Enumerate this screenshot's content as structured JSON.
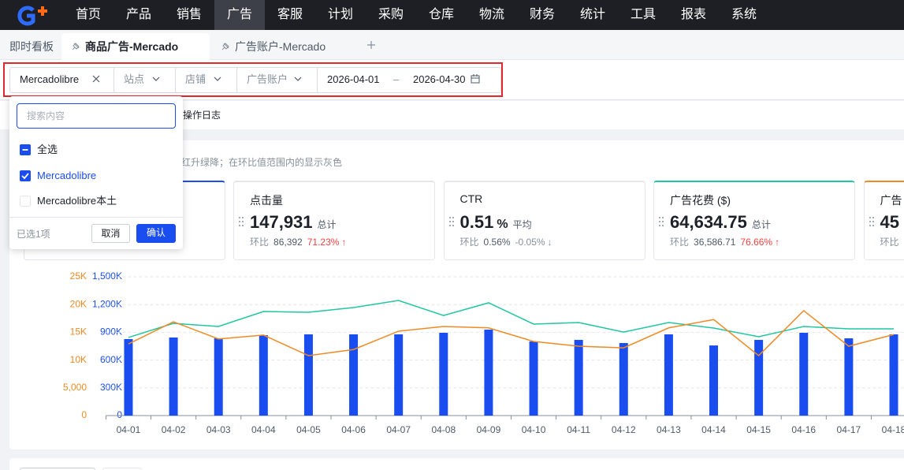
{
  "nav": {
    "items": [
      "首页",
      "产品",
      "销售",
      "广告",
      "客服",
      "计划",
      "采购",
      "仓库",
      "物流",
      "财务",
      "统计",
      "工具",
      "报表",
      "系统"
    ],
    "active_index": 3
  },
  "tabs": {
    "items": [
      "即时看板",
      "商品广告-Mercado",
      "广告账户-Mercado"
    ],
    "active_index": 1
  },
  "filters": {
    "platform": "Mercadolibre",
    "site": "站点",
    "shop": "店铺",
    "ad_account": "广告账户",
    "date_start": "2026-04-01",
    "date_separator": "–",
    "date_end": "2026-04-30"
  },
  "dropdown": {
    "search_placeholder": "搜索内容",
    "options": [
      {
        "label": "全选",
        "state": "indeterminate"
      },
      {
        "label": "Mercadolibre",
        "state": "checked"
      },
      {
        "label": "Mercadolibre本土",
        "state": "unchecked"
      }
    ],
    "selected_count": "已选1项",
    "cancel": "取消",
    "confirm": "确认"
  },
  "toolbar": {
    "log": "操作日志"
  },
  "hint": "红升绿降；在环比值范围内的显示灰色",
  "cards": [
    {
      "title": "点击量",
      "value": "147,931",
      "aggregate": "总计",
      "compare_label": "环比",
      "previous": "86,392",
      "change": "71.23%",
      "arrow": "↑",
      "change_color": "#f53f3f",
      "accent": "#e5e6eb"
    },
    {
      "title": "CTR",
      "value": "0.51",
      "unit": "%",
      "aggregate": "平均",
      "compare_label": "环比",
      "previous": "0.56%",
      "change": "-0.05%",
      "arrow": "↓",
      "change_color": "#86909c",
      "accent": "#e5e6eb"
    },
    {
      "title": "广告花费 ($)",
      "value": "64,634.75",
      "aggregate": "总计",
      "compare_label": "环比",
      "previous": "36,586.71",
      "change": "76.66%",
      "arrow": "↑",
      "change_color": "#f53f3f",
      "accent": "#20c7a0"
    },
    {
      "title": "广告",
      "value": "45",
      "compare_label": "环比",
      "accent": "#f08a24"
    }
  ],
  "chart_data": {
    "type": "combo",
    "categories": [
      "04-01",
      "04-02",
      "04-03",
      "04-04",
      "04-05",
      "04-06",
      "04-07",
      "04-08",
      "04-09",
      "04-10",
      "04-11",
      "04-12",
      "04-13",
      "04-14",
      "04-15",
      "04-16",
      "04-17",
      "04-18"
    ],
    "series": [
      {
        "type": "bar",
        "color": "#1a4df0",
        "values": [
          827000,
          844000,
          835000,
          869000,
          878000,
          878000,
          878000,
          895000,
          929000,
          801000,
          818000,
          784000,
          878000,
          758000,
          818000,
          895000,
          835000,
          878000
        ]
      },
      {
        "type": "line",
        "color": "#20c7a0",
        "values": [
          844000,
          997000,
          963000,
          1125000,
          1116000,
          1168000,
          1244000,
          1082000,
          1219000,
          989000,
          1006000,
          903000,
          1006000,
          946000,
          852000,
          963000,
          938000,
          938000
        ]
      },
      {
        "type": "line",
        "color": "#f08a24",
        "axis": "y2",
        "values": [
          12900,
          16900,
          13800,
          14500,
          10800,
          11900,
          15200,
          16050,
          15800,
          13350,
          12500,
          12200,
          15800,
          17300,
          10800,
          18900,
          12500,
          14600
        ]
      }
    ],
    "ylim": [
      0,
      1500000
    ],
    "yticks": [
      0,
      {
        "value": 300000,
        "label": "300K"
      },
      {
        "value": 600000,
        "label": "600K"
      },
      {
        "value": 900000,
        "label": "900K"
      },
      {
        "value": 1200000,
        "label": "1,200K"
      },
      {
        "value": 1500000,
        "label": "1,500K"
      }
    ],
    "y2lim": [
      0,
      25000
    ],
    "y2ticks": [
      0,
      {
        "value": 5000,
        "label": "5,000"
      },
      {
        "value": 10000,
        "label": "10K"
      },
      {
        "value": 15000,
        "label": "15K"
      },
      {
        "value": 20000,
        "label": "20K"
      },
      {
        "value": 25000,
        "label": "25K"
      }
    ],
    "grid": true
  }
}
